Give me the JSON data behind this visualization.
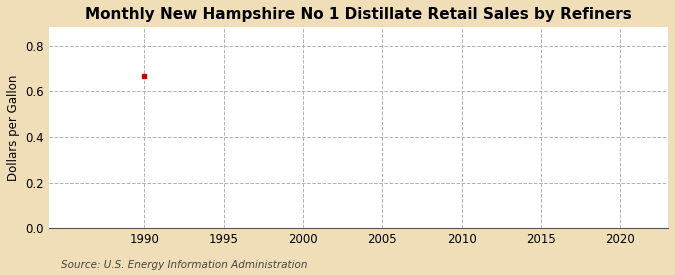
{
  "title": "Monthly New Hampshire No 1 Distillate Retail Sales by Refiners",
  "ylabel": "Dollars per Gallon",
  "source": "Source: U.S. Energy Information Administration",
  "figure_bg": "#f0deb8",
  "plot_bg": "#ffffff",
  "data_x": [
    1990
  ],
  "data_y": [
    0.668
  ],
  "marker_color": "#cc0000",
  "marker_size": 3.5,
  "xlim": [
    1984,
    2023
  ],
  "ylim": [
    0.0,
    0.88
  ],
  "xticks": [
    1990,
    1995,
    2000,
    2005,
    2010,
    2015,
    2020
  ],
  "yticks": [
    0.0,
    0.2,
    0.4,
    0.6,
    0.8
  ],
  "grid_color": "#aaaaaa",
  "title_fontsize": 11,
  "label_fontsize": 8.5,
  "tick_fontsize": 8.5,
  "source_fontsize": 7.5
}
